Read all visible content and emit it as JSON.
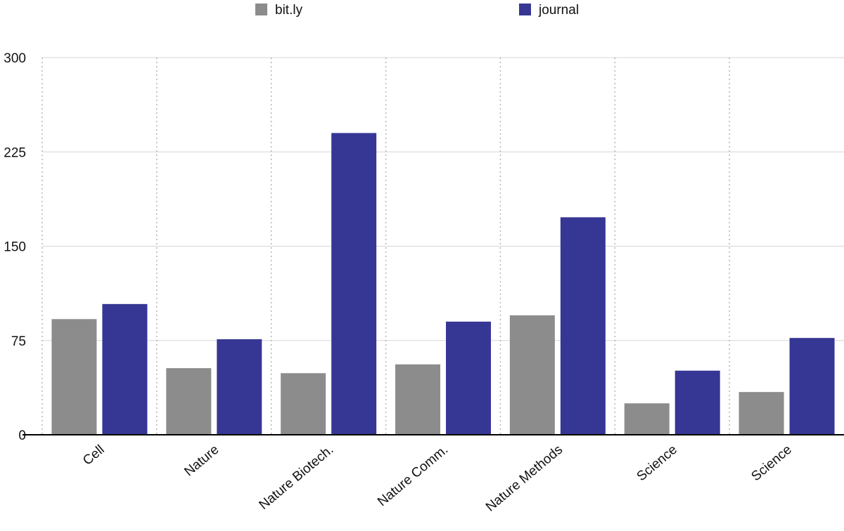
{
  "chart_data": {
    "type": "bar",
    "categories": [
      "Cell",
      "Nature",
      "Nature Biotech.",
      "Nature Comm.",
      "Nature Methods",
      "Science",
      "Science"
    ],
    "series": [
      {
        "name": "bit.ly",
        "color": "#8c8c8c",
        "values": [
          92,
          53,
          49,
          56,
          95,
          25,
          34
        ]
      },
      {
        "name": "journal",
        "color": "#363794",
        "values": [
          104,
          76,
          240,
          90,
          173,
          51,
          77
        ]
      }
    ],
    "yticks": [
      0,
      75,
      150,
      225,
      300
    ],
    "ylim": [
      0,
      300
    ],
    "title": "",
    "xlabel": "",
    "ylabel": "",
    "grid": true,
    "legend_position": "top"
  }
}
